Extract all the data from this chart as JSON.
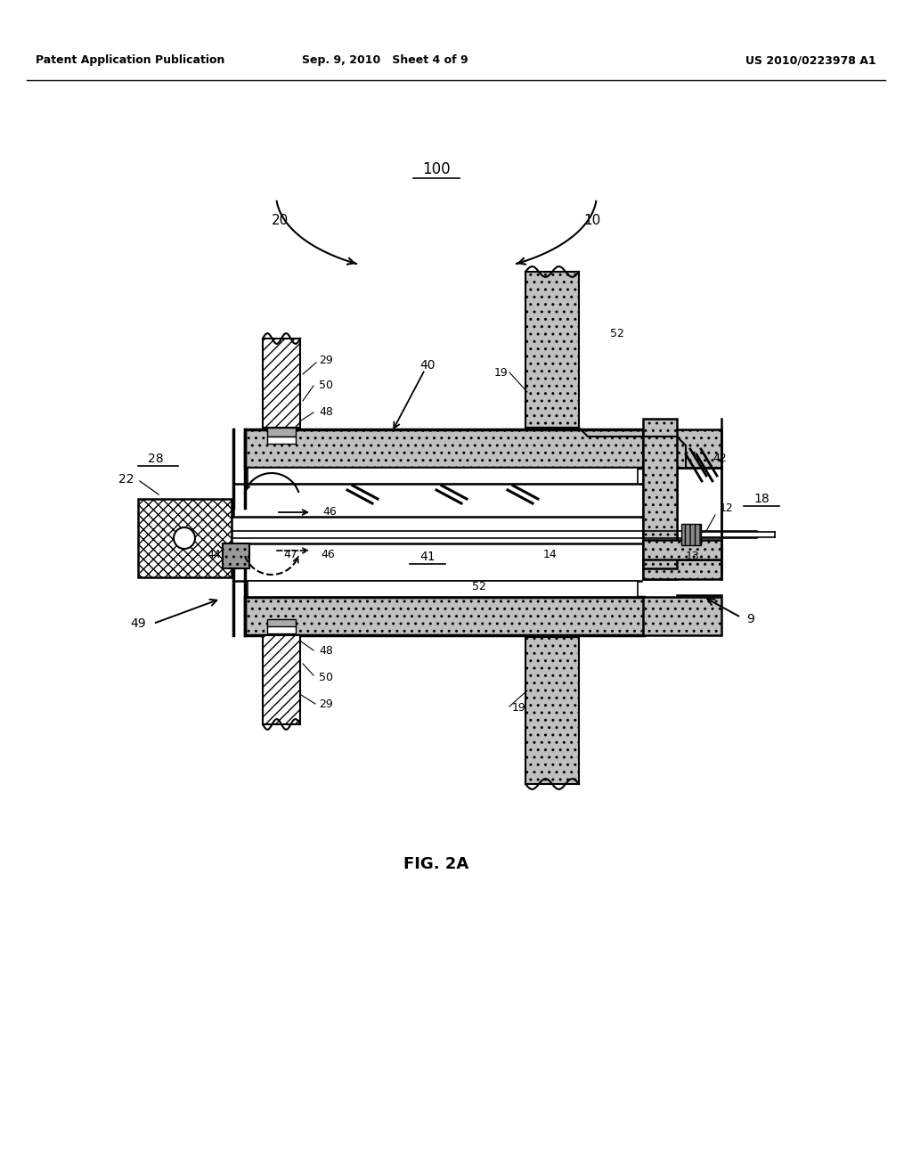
{
  "bg_color": "#ffffff",
  "header_left": "Patent Application Publication",
  "header_mid": "Sep. 9, 2010   Sheet 4 of 9",
  "header_right": "US 2010/0223978 A1",
  "figure_label": "FIG. 2A",
  "gray_fill": "#c8c8c8",
  "hatch_fill": "#d0d0d0",
  "line_color": "#000000",
  "lw_main": 1.8,
  "lw_thick": 2.5,
  "lw_thin": 1.2
}
